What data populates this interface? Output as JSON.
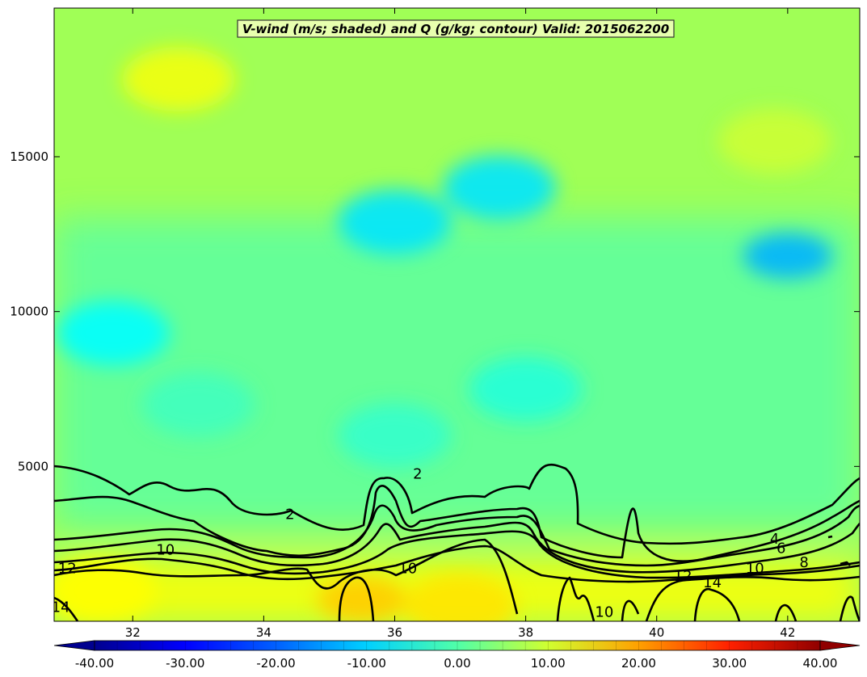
{
  "chart_data": {
    "type": "heatmap",
    "title": "V-wind (m/s; shaded) and Q (g/kg; contour) Valid: 2015062200",
    "xlabel": "",
    "ylabel": "",
    "xlim": [
      30.8,
      43.1
    ],
    "ylim": [
      0,
      19800
    ],
    "x_ticks": [
      32,
      34,
      36,
      38,
      40,
      42
    ],
    "y_ticks": [
      5000,
      10000,
      15000
    ],
    "colorbar": {
      "min": -40,
      "max": 40,
      "step": 2.5,
      "ticks": [
        -40,
        -30,
        -20,
        -10,
        0,
        10,
        20,
        30,
        40
      ],
      "tick_labels": [
        "-40.00",
        "-30.00",
        "-20.00",
        "-10.00",
        "0.00",
        "10.00",
        "20.00",
        "30.00",
        "40.00"
      ],
      "extend": "both",
      "colormap": "jet"
    },
    "shading_description": "V-wind mostly between -12 and +12 m/s; positive (yellow, ~8-12) near surface below 2000 m, near-zero to negative (cyan, -5 to -10) aloft, strongest negative (~-15) near x=42, z=11800 and x=37.6, z=14000",
    "shaded_field_samples": [
      {
        "x": 31.5,
        "z": 1000,
        "v": 10
      },
      {
        "x": 35.5,
        "z": 700,
        "v": 14
      },
      {
        "x": 37.0,
        "z": 500,
        "v": 12
      },
      {
        "x": 33.0,
        "z": 7000,
        "v": -5
      },
      {
        "x": 36.0,
        "z": 6000,
        "v": -6
      },
      {
        "x": 38.0,
        "z": 7500,
        "v": -7
      },
      {
        "x": 31.7,
        "z": 9300,
        "v": -10
      },
      {
        "x": 36.0,
        "z": 12900,
        "v": -12
      },
      {
        "x": 37.6,
        "z": 14000,
        "v": -12
      },
      {
        "x": 42.0,
        "z": 11800,
        "v": -16
      },
      {
        "x": 32.7,
        "z": 17500,
        "v": 9
      },
      {
        "x": 41.8,
        "z": 15500,
        "v": 6
      }
    ],
    "contour_levels": [
      2,
      4,
      6,
      8,
      10,
      12,
      14
    ],
    "contour_labels": [
      {
        "text": "2",
        "x": 36.35,
        "z": 4600
      },
      {
        "text": "2",
        "x": 34.4,
        "z": 3300
      },
      {
        "text": "10",
        "x": 32.5,
        "z": 2150
      },
      {
        "text": "12",
        "x": 31.0,
        "z": 1550
      },
      {
        "text": "14",
        "x": 30.9,
        "z": 300
      },
      {
        "text": "10",
        "x": 36.2,
        "z": 1550
      },
      {
        "text": "4",
        "x": 41.8,
        "z": 2500
      },
      {
        "text": "6",
        "x": 41.9,
        "z": 2200
      },
      {
        "text": "8",
        "x": 42.25,
        "z": 1750
      },
      {
        "text": "10",
        "x": 41.5,
        "z": 1550
      },
      {
        "text": "12",
        "x": 40.4,
        "z": 1300
      },
      {
        "text": "14",
        "x": 40.85,
        "z": 1100
      },
      {
        "text": "10",
        "x": 39.2,
        "z": 150
      }
    ]
  },
  "colors": {
    "background": "#ffffff",
    "base_shading": "#a0ff56",
    "contour_line": "#000000",
    "title_box": "#ffffcc"
  }
}
